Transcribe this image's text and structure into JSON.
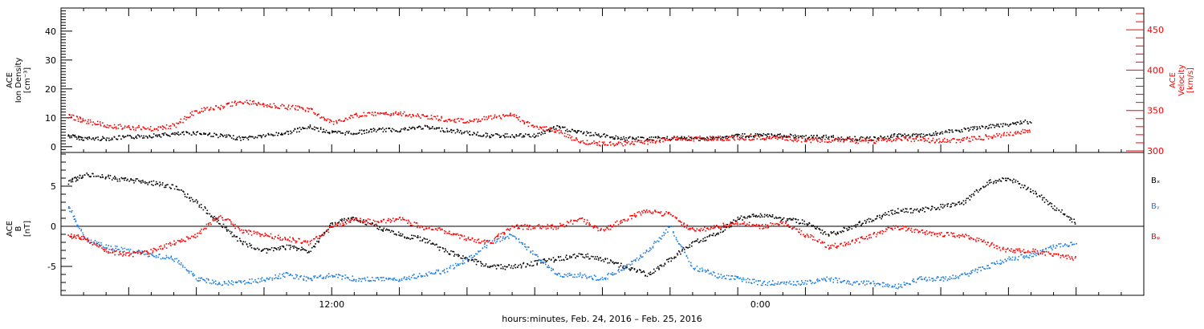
{
  "chart_data": [
    {
      "type": "scatter",
      "panel": "top",
      "ylabel": "ACE\nIon Density\n[cm⁻³]",
      "ylabel2": "ACE\nVelocity\n[km/s]",
      "xlabel": "hours:minutes, Feb. 24, 2016 – Feb. 25, 2016",
      "xlim_hours": [
        0,
        48
      ],
      "ylim": [
        -2,
        48
      ],
      "yticks": [
        0,
        10,
        20,
        30,
        40
      ],
      "ylim2": [
        298,
        477
      ],
      "yticks2": [
        300,
        350,
        400,
        450
      ],
      "y2_color": "#ff0000",
      "series": [
        {
          "axis": "left",
          "color": "#000000",
          "points": [
            [
              0.3,
              4
            ],
            [
              1,
              3
            ],
            [
              2,
              3
            ],
            [
              3,
              3.5
            ],
            [
              4,
              4
            ],
            [
              5,
              4.5
            ],
            [
              6,
              5
            ],
            [
              7,
              4
            ],
            [
              8,
              3
            ],
            [
              9,
              4
            ],
            [
              10,
              5
            ],
            [
              11,
              7
            ],
            [
              12,
              5
            ],
            [
              13,
              5
            ],
            [
              14,
              6
            ],
            [
              15,
              6
            ],
            [
              16,
              7
            ],
            [
              17,
              6
            ],
            [
              18,
              5
            ],
            [
              19,
              4
            ],
            [
              20,
              4
            ],
            [
              21,
              4
            ],
            [
              22,
              7
            ],
            [
              23,
              5
            ],
            [
              24,
              4
            ],
            [
              25,
              3
            ],
            [
              26,
              3
            ],
            [
              27,
              3
            ],
            [
              28,
              3
            ],
            [
              29,
              3
            ],
            [
              30,
              4
            ],
            [
              31,
              4
            ],
            [
              32,
              4
            ],
            [
              33,
              3.5
            ],
            [
              34,
              3.5
            ],
            [
              35,
              3
            ],
            [
              36,
              3
            ],
            [
              37,
              4
            ],
            [
              38,
              4
            ],
            [
              39,
              5
            ],
            [
              40,
              6
            ],
            [
              41,
              7
            ],
            [
              42,
              8
            ],
            [
              43,
              9
            ]
          ]
        },
        {
          "axis": "right",
          "color": "#ff0000",
          "points": [
            [
              0.3,
              344
            ],
            [
              1,
              338
            ],
            [
              2,
              332
            ],
            [
              3,
              330
            ],
            [
              4,
              328
            ],
            [
              5,
              332
            ],
            [
              6,
              350
            ],
            [
              7,
              355
            ],
            [
              8,
              362
            ],
            [
              9,
              358
            ],
            [
              10,
              355
            ],
            [
              11,
              352
            ],
            [
              12,
              335
            ],
            [
              13,
              345
            ],
            [
              14,
              346
            ],
            [
              15,
              347
            ],
            [
              16,
              344
            ],
            [
              17,
              340
            ],
            [
              18,
              337
            ],
            [
              19,
              342
            ],
            [
              20,
              345
            ],
            [
              21,
              330
            ],
            [
              22,
              325
            ],
            [
              23,
              312
            ],
            [
              24,
              309
            ],
            [
              25,
              310
            ],
            [
              26,
              312
            ],
            [
              27,
              316
            ],
            [
              28,
              316
            ],
            [
              29,
              316
            ],
            [
              30,
              317
            ],
            [
              31,
              317
            ],
            [
              32,
              316
            ],
            [
              33,
              314
            ],
            [
              34,
              314
            ],
            [
              35,
              313
            ],
            [
              36,
              313
            ],
            [
              37,
              316
            ],
            [
              38,
              315
            ],
            [
              39,
              313
            ],
            [
              40,
              314
            ],
            [
              41,
              318
            ],
            [
              42,
              322
            ],
            [
              43,
              326
            ]
          ]
        }
      ]
    },
    {
      "type": "scatter",
      "panel": "bottom",
      "ylabel": "ACE\nB\n[nT]",
      "xlim_hours": [
        0,
        48
      ],
      "ylim": [
        -8.6,
        9.2
      ],
      "yticks": [
        -5,
        0,
        5
      ],
      "xtick_labels": [
        {
          "x": 12,
          "label": "12:00"
        },
        {
          "x": 31,
          "label": "0:00"
        }
      ],
      "legend": [
        "Bₓ",
        "Bᵧ",
        "Bᵩ"
      ],
      "legend_position": "right",
      "series": [
        {
          "name": "Bₓ",
          "color": "#000000",
          "points": [
            [
              0.3,
              5.5
            ],
            [
              1,
              6.5
            ],
            [
              2,
              6.2
            ],
            [
              3,
              5.8
            ],
            [
              4,
              5.5
            ],
            [
              5,
              5
            ],
            [
              6,
              3
            ],
            [
              7,
              0.5
            ],
            [
              8,
              -2
            ],
            [
              9,
              -3
            ],
            [
              10,
              -2.5
            ],
            [
              11,
              -3
            ],
            [
              12,
              0.5
            ],
            [
              13,
              1
            ],
            [
              14,
              0
            ],
            [
              15,
              -1
            ],
            [
              16,
              -1.5
            ],
            [
              17,
              -3
            ],
            [
              18,
              -4
            ],
            [
              19,
              -5
            ],
            [
              20,
              -5
            ],
            [
              21,
              -4.5
            ],
            [
              22,
              -4
            ],
            [
              23,
              -3.5
            ],
            [
              24,
              -4
            ],
            [
              25,
              -5
            ],
            [
              26,
              -6
            ],
            [
              27,
              -4
            ],
            [
              28,
              -2
            ],
            [
              29,
              -1
            ],
            [
              30,
              1
            ],
            [
              31,
              1.5
            ],
            [
              32,
              1
            ],
            [
              33,
              0.5
            ],
            [
              34,
              -1
            ],
            [
              35,
              0
            ],
            [
              36,
              1
            ],
            [
              37,
              2
            ],
            [
              38,
              2
            ],
            [
              39,
              2.5
            ],
            [
              40,
              3
            ],
            [
              41,
              5.5
            ],
            [
              42,
              6
            ],
            [
              43,
              4.5
            ],
            [
              44,
              2.5
            ],
            [
              45,
              0.5
            ]
          ]
        },
        {
          "name": "Bᵧ",
          "color": "#1f7fe0",
          "points": [
            [
              0.3,
              2.5
            ],
            [
              1,
              -1.5
            ],
            [
              2,
              -2.5
            ],
            [
              3,
              -3
            ],
            [
              4,
              -3.5
            ],
            [
              5,
              -4
            ],
            [
              6,
              -6.5
            ],
            [
              7,
              -7
            ],
            [
              8,
              -7
            ],
            [
              9,
              -6.5
            ],
            [
              10,
              -6
            ],
            [
              11,
              -6.5
            ],
            [
              12,
              -6
            ],
            [
              13,
              -6.5
            ],
            [
              14,
              -6.5
            ],
            [
              15,
              -6.5
            ],
            [
              16,
              -6
            ],
            [
              17,
              -5.5
            ],
            [
              18,
              -4
            ],
            [
              19,
              -2
            ],
            [
              20,
              -1
            ],
            [
              21,
              -3.5
            ],
            [
              22,
              -6
            ],
            [
              23,
              -6
            ],
            [
              24,
              -6.5
            ],
            [
              25,
              -5
            ],
            [
              26,
              -3
            ],
            [
              27,
              0
            ],
            [
              28,
              -5
            ],
            [
              29,
              -6
            ],
            [
              30,
              -6.5
            ],
            [
              31,
              -7
            ],
            [
              32,
              -7
            ],
            [
              33,
              -7
            ],
            [
              34,
              -6.5
            ],
            [
              35,
              -7
            ],
            [
              36,
              -7
            ],
            [
              37,
              -7.5
            ],
            [
              38,
              -6.5
            ],
            [
              39,
              -6.5
            ],
            [
              40,
              -6
            ],
            [
              41,
              -5
            ],
            [
              42,
              -4
            ],
            [
              43,
              -3.5
            ],
            [
              44,
              -2.5
            ],
            [
              45,
              -2
            ]
          ]
        },
        {
          "name": "Bᵩ",
          "color": "#ff0000",
          "points": [
            [
              0.3,
              -1
            ],
            [
              1,
              -1.5
            ],
            [
              2,
              -3
            ],
            [
              3,
              -3.5
            ],
            [
              4,
              -3
            ],
            [
              5,
              -2
            ],
            [
              6,
              -1
            ],
            [
              7,
              1.5
            ],
            [
              8,
              -0.5
            ],
            [
              9,
              -1
            ],
            [
              10,
              -1.5
            ],
            [
              11,
              -2
            ],
            [
              12,
              0
            ],
            [
              13,
              1
            ],
            [
              14,
              0.5
            ],
            [
              15,
              1
            ],
            [
              16,
              0
            ],
            [
              17,
              -0.5
            ],
            [
              18,
              -1.5
            ],
            [
              19,
              -2
            ],
            [
              20,
              0
            ],
            [
              21,
              0
            ],
            [
              22,
              0
            ],
            [
              23,
              1
            ],
            [
              24,
              -0.5
            ],
            [
              25,
              1
            ],
            [
              26,
              2
            ],
            [
              27,
              1.5
            ],
            [
              28,
              -0.5
            ],
            [
              29,
              0
            ],
            [
              30,
              0.5
            ],
            [
              31,
              0
            ],
            [
              32,
              0.5
            ],
            [
              33,
              -1
            ],
            [
              34,
              -2.5
            ],
            [
              35,
              -2
            ],
            [
              36,
              -1
            ],
            [
              37,
              0
            ],
            [
              38,
              -0.5
            ],
            [
              39,
              -1
            ],
            [
              40,
              -1
            ],
            [
              41,
              -2
            ],
            [
              42,
              -3
            ],
            [
              43,
              -3
            ],
            [
              44,
              -3.5
            ],
            [
              45,
              -4
            ]
          ]
        }
      ]
    }
  ]
}
